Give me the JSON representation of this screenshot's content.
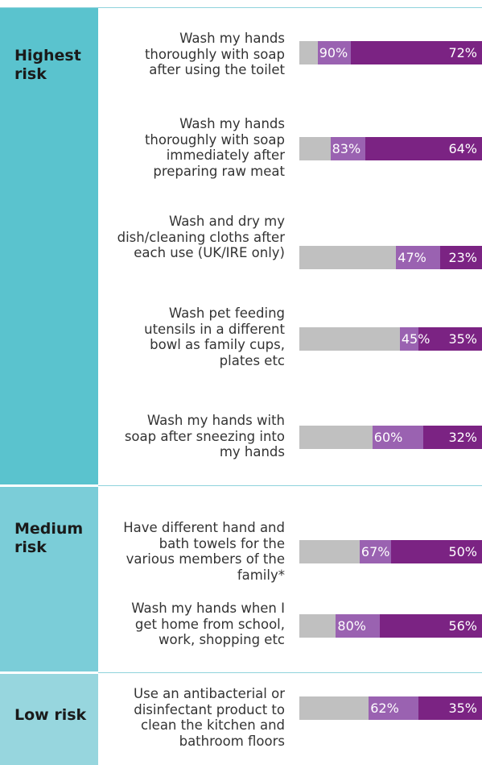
{
  "chart_data": {
    "type": "bar",
    "orientation": "horizontal",
    "stacking": "overlay",
    "xlim": [
      0,
      100
    ],
    "colors": {
      "background_bar": "#c0c0c0",
      "series_1": "#9a62b1",
      "series_2": "#7b2383",
      "highest_band": "#5ac3ce",
      "medium_band": "#7bcdd8",
      "low_band": "#97d6de",
      "separator": "#8fd3dc"
    },
    "groups": [
      {
        "label": "Highest risk",
        "items": [
          {
            "label": "Wash my hands thoroughly with soap after using the toilet",
            "values": [
              90,
              72
            ],
            "value_labels": [
              "90%",
              "72%"
            ]
          },
          {
            "label": "Wash my hands thoroughly with soap immediately after preparing raw meat",
            "values": [
              83,
              64
            ],
            "value_labels": [
              "83%",
              "64%"
            ]
          },
          {
            "label": "Wash and dry my dish/cleaning cloths after each use (UK/IRE only)",
            "values": [
              47,
              23
            ],
            "value_labels": [
              "47%",
              "23%"
            ]
          },
          {
            "label": "Wash pet feeding utensils in a different bowl as family cups, plates etc",
            "values": [
              45,
              35
            ],
            "value_labels": [
              "45%",
              "35%"
            ]
          },
          {
            "label": "Wash my hands with soap after sneezing into my hands",
            "values": [
              60,
              32
            ],
            "value_labels": [
              "60%",
              "32%"
            ]
          }
        ]
      },
      {
        "label": "Medium risk",
        "items": [
          {
            "label": "Have different hand and bath towels for the various members of the family*",
            "values": [
              67,
              50
            ],
            "value_labels": [
              "67%",
              "50%"
            ]
          },
          {
            "label": "Wash my hands when I get home from school, work, shopping etc",
            "values": [
              80,
              56
            ],
            "value_labels": [
              "80%",
              "56%"
            ]
          }
        ]
      },
      {
        "label": "Low risk",
        "items": [
          {
            "label": "Use an antibacterial or disinfectant product to clean the kitchen and bathroom floors",
            "values": [
              62,
              35
            ],
            "value_labels": [
              "62%",
              "35%"
            ]
          }
        ]
      }
    ]
  }
}
